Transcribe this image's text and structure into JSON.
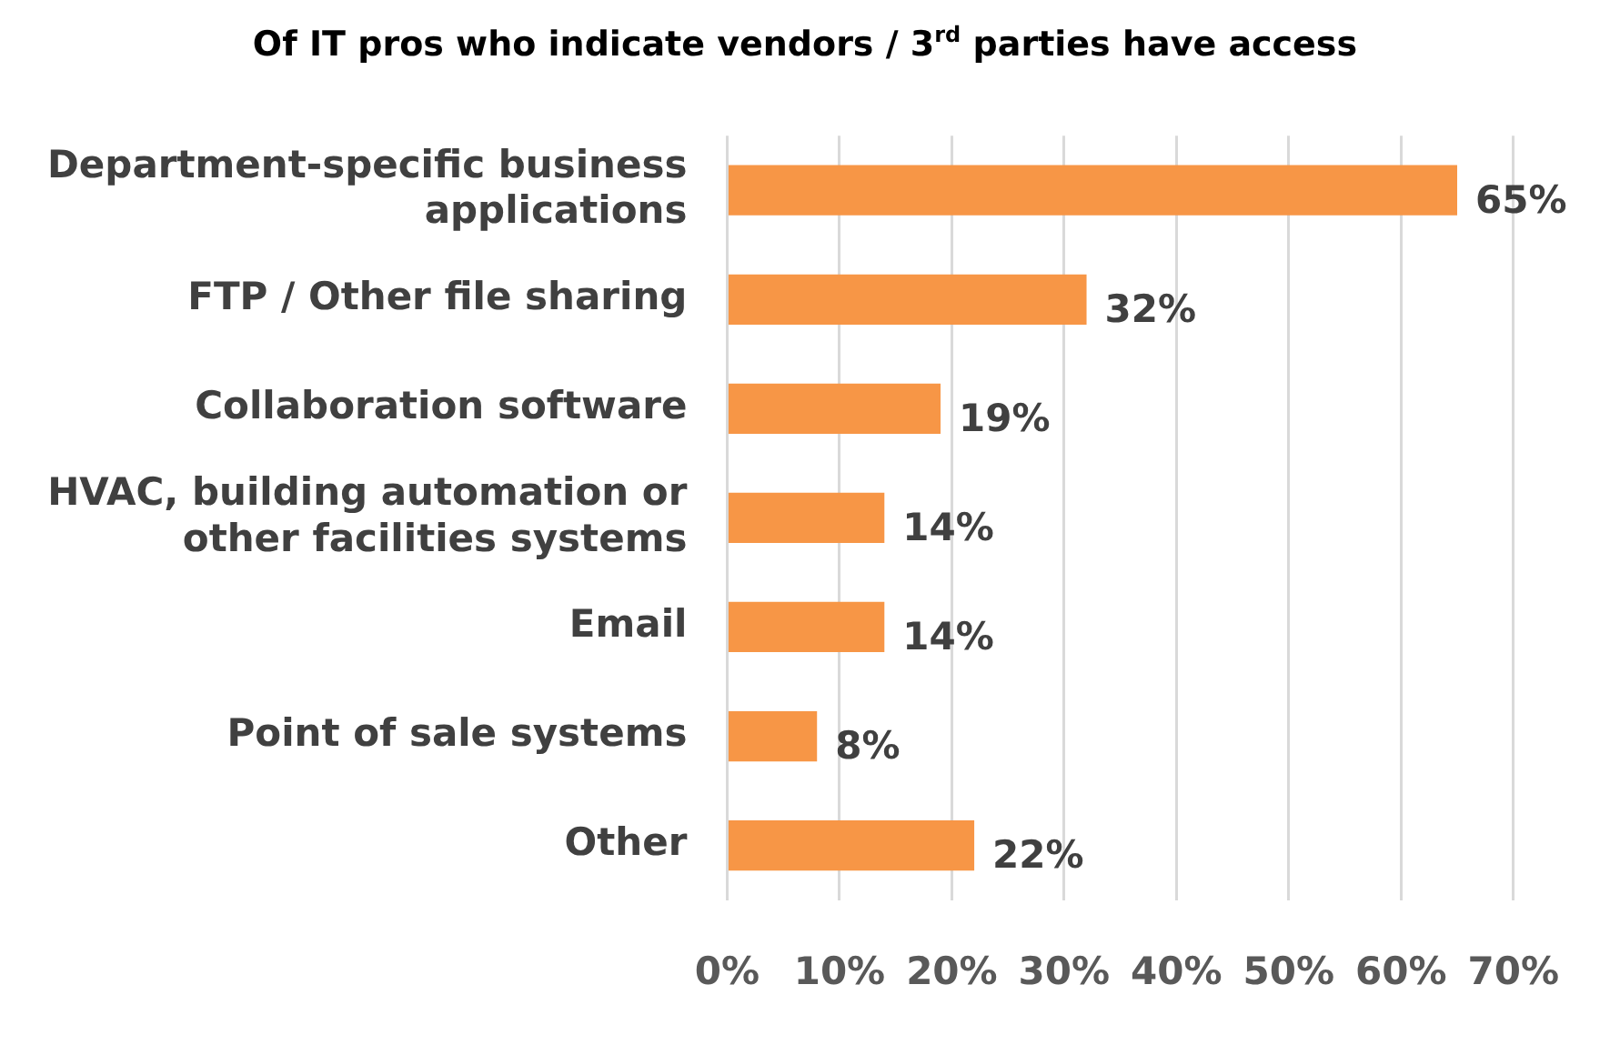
{
  "chart_data": {
    "type": "bar",
    "orientation": "horizontal",
    "title": "Of IT pros who indicate vendors / 3$^{rd}$ parties have access",
    "categories": [
      "Department-specific business applications",
      "FTP / Other file sharing",
      "Collaboration software",
      "HVAC, building automation or other facilities systems",
      "Email",
      "Point of sale systems",
      "Other"
    ],
    "values": [
      65,
      32,
      19,
      14,
      14,
      8,
      22
    ],
    "value_labels": [
      "65%",
      "32%",
      "19%",
      "14%",
      "14%",
      "8%",
      "22%"
    ],
    "color": "#f79646",
    "xlim": [
      0,
      70
    ],
    "xticks": [
      {
        "value": 0,
        "label": "0%"
      },
      {
        "value": 10,
        "label": "10%"
      },
      {
        "value": 20,
        "label": "20%"
      },
      {
        "value": 30,
        "label": "30%"
      },
      {
        "value": 40,
        "label": "40%"
      },
      {
        "value": 50,
        "label": "50%"
      },
      {
        "value": 60,
        "label": "60%"
      },
      {
        "value": 70,
        "label": "70%"
      }
    ],
    "grid": "x",
    "legend": false
  }
}
